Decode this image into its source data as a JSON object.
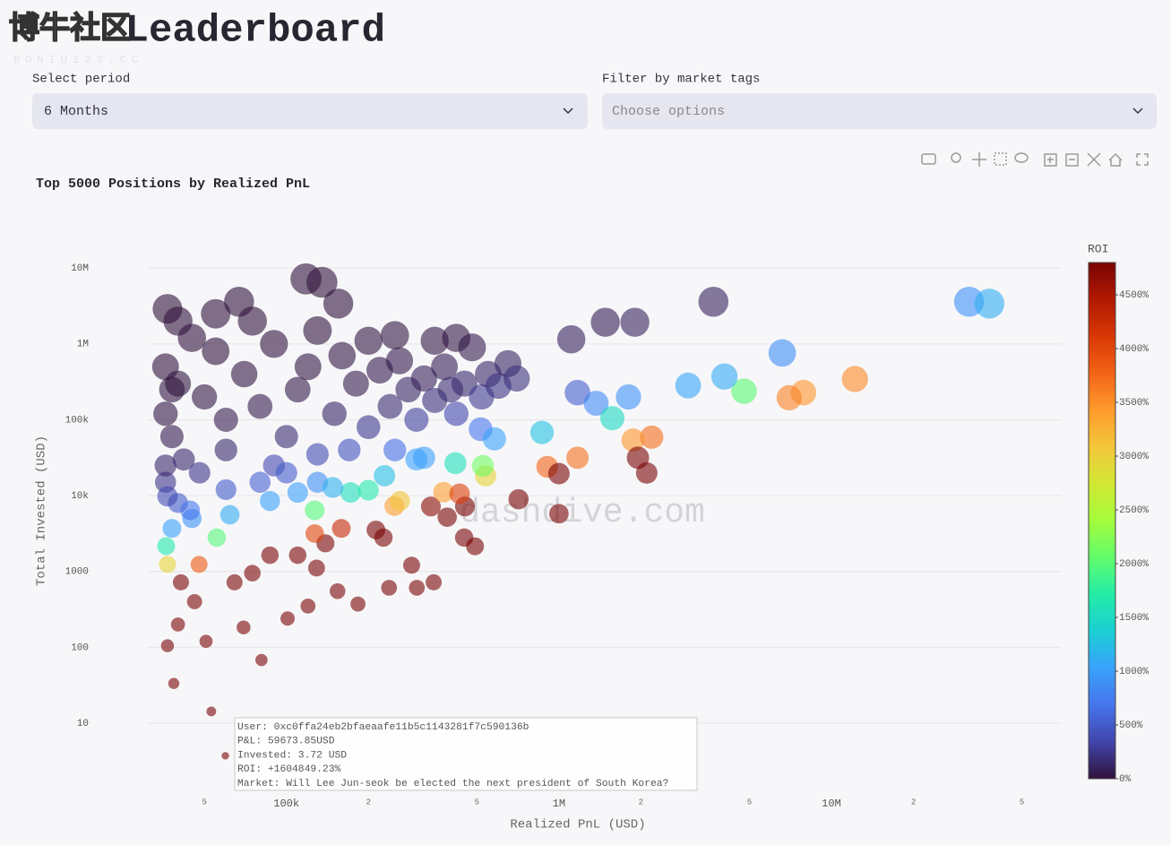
{
  "header": {
    "title": "Leaderboard",
    "watermark": "博牛社区",
    "watermark_sub": "BONIU123.CC"
  },
  "controls": [
    {
      "label": "Select period",
      "value": "6 Months"
    },
    {
      "label": "Filter by market tags",
      "placeholder": "Choose options"
    }
  ],
  "chart_data": {
    "type": "scatter",
    "title": "Top 5000 Positions by Realized PnL",
    "xlabel": "Realized PnL (USD)",
    "ylabel": "Total Invested (USD)",
    "log_x": true,
    "log_y": true,
    "grid": "y",
    "opacity": 0.6,
    "annotation": "dashdive.com",
    "xlim": [
      31000,
      70000000
    ],
    "ylim": [
      1.2,
      50000000
    ],
    "xticks": [
      {
        "value": 50000,
        "label": "5"
      },
      {
        "value": 100000,
        "label": "100k"
      },
      {
        "value": 200000,
        "label": "2"
      },
      {
        "value": 500000,
        "label": "5"
      },
      {
        "value": 1000000,
        "label": "1M"
      },
      {
        "value": 2000000,
        "label": "2"
      },
      {
        "value": 5000000,
        "label": "5"
      },
      {
        "value": 10000000,
        "label": "10M"
      },
      {
        "value": 20000000,
        "label": "2"
      },
      {
        "value": 50000000,
        "label": "5"
      }
    ],
    "yticks": [
      10,
      100,
      1000,
      {
        "value": 10000,
        "label": "10k"
      },
      {
        "value": 100000,
        "label": "100k"
      },
      {
        "value": 1000000,
        "label": "1M"
      },
      {
        "value": 10000000,
        "label": "10M"
      }
    ],
    "colorbar": {
      "title": "ROI",
      "range": [
        0,
        4800
      ],
      "ticks": [
        {
          "value": 0,
          "label": "0%"
        },
        {
          "value": 500,
          "label": "500%"
        },
        {
          "value": 1000,
          "label": "1000%"
        },
        {
          "value": 1500,
          "label": "1500%"
        },
        {
          "value": 2000,
          "label": "2000%"
        },
        {
          "value": 2500,
          "label": "2500%"
        },
        {
          "value": 3000,
          "label": "3000%"
        },
        {
          "value": 3500,
          "label": "3500%"
        },
        {
          "value": 4000,
          "label": "4000%"
        },
        {
          "value": 4500,
          "label": "4500%"
        }
      ],
      "colorscale": [
        "#30123b",
        "#4145ab",
        "#4675ed",
        "#39a2fc",
        "#1bcfd4",
        "#24eca6",
        "#61fc6c",
        "#a4fc3b",
        "#d1e834",
        "#f3c63a",
        "#fe9b2d",
        "#f36315",
        "#d93806",
        "#b11901",
        "#7a0403"
      ]
    },
    "x": [
      36000,
      40000,
      45000,
      50000,
      55000,
      60000,
      38000,
      42000,
      48000,
      36000,
      70000,
      80000,
      90000,
      100000,
      110000,
      120000,
      130000,
      150000,
      160000,
      180000,
      200000,
      220000,
      240000,
      260000,
      280000,
      300000,
      320000,
      350000,
      380000,
      400000,
      420000,
      450000,
      480000,
      520000,
      550000,
      600000,
      650000,
      700000,
      75000,
      130000,
      200000,
      250000,
      350000,
      420000,
      60000,
      90000,
      170000,
      36000,
      40000,
      45000,
      36000,
      38000,
      40000,
      55000,
      60000,
      80000,
      100000,
      130000,
      250000,
      300000,
      118000,
      135000,
      155000,
      36600,
      67000,
      3690000,
      1900000,
      1480000,
      32000000,
      38000000,
      6600000,
      12200000,
      7900000,
      7000000,
      4780000,
      4050000,
      2980000,
      1170000,
      1370000,
      1800000,
      1570000,
      1110000,
      867000,
      2190000,
      1870000,
      1950000,
      2100000,
      1170000,
      906000,
      1000000,
      711000,
      1000000,
      492000,
      449000,
      389000,
      452000,
      339000,
      377000,
      432000,
      538000,
      526000,
      417000,
      516000,
      580000,
      320000,
      288000,
      301000,
      347000,
      238000,
      213000,
      227000,
      249000,
      229000,
      183000,
      154000,
      129000,
      139000,
      127000,
      81000,
      59673.85,
      53000,
      38600,
      36600,
      50700,
      69600,
      101000,
      87000,
      64500,
      47800,
      36600,
      36200,
      38000,
      55500,
      41000,
      75000,
      110000,
      159000,
      127000,
      110000,
      87000,
      62000,
      44300,
      36600,
      172000,
      200000,
      148000,
      261000,
      46000,
      40000,
      120000
    ],
    "y": [
      500000,
      300000,
      1200000,
      200000,
      800000,
      100000,
      60000,
      30000,
      20000,
      15000,
      400000,
      150000,
      1000000,
      60000,
      250000,
      500000,
      35000,
      120000,
      700000,
      300000,
      80000,
      450000,
      150000,
      600000,
      250000,
      100000,
      350000,
      180000,
      500000,
      250000,
      120000,
      300000,
      900000,
      200000,
      400000,
      280000,
      550000,
      350000,
      2000000,
      1500000,
      1100000,
      1300000,
      1100000,
      1200000,
      40000,
      25000,
      40000,
      25000,
      8000,
      5000,
      120000,
      250000,
      2000000,
      2500000,
      12000,
      15000,
      20000,
      15000,
      40000,
      30000,
      7200000,
      6500000,
      3400000,
      2900000,
      3600000,
      3600000,
      1930000,
      1930000,
      3600000,
      3400000,
      760000,
      344000,
      228000,
      195000,
      238000,
      372000,
      283000,
      228000,
      165000,
      200000,
      105000,
      1150000,
      68000,
      59000,
      54000,
      31600,
      19900,
      31600,
      24000,
      19500,
      8950,
      5780,
      2150,
      2800,
      5200,
      7200,
      7200,
      11100,
      10600,
      18300,
      24700,
      26800,
      75000,
      56000,
      31600,
      1210,
      610,
      720,
      610,
      3530,
      2800,
      7300,
      18300,
      372,
      550,
      1110,
      2350,
      3160,
      68,
      3.72,
      14.3,
      33.4,
      105,
      120,
      183,
      240,
      1640,
      720,
      1240,
      1240,
      2160,
      3700,
      2800,
      720,
      950,
      1640,
      3700,
      6400,
      11000,
      8500,
      5600,
      6400,
      9800,
      11000,
      11800,
      12800,
      8500,
      400,
      200,
      350
    ],
    "roi": [
      7,
      13,
      4,
      25,
      7,
      60,
      63,
      140,
      240,
      240,
      18,
      53,
      9,
      167,
      44,
      24,
      371,
      125,
      23,
      60,
      250,
      49,
      160,
      43,
      112,
      300,
      91,
      194,
      76,
      160,
      350,
      150,
      53,
      260,
      138,
      214,
      118,
      200,
      4,
      9,
      18,
      19,
      32,
      35,
      150,
      360,
      425,
      144,
      500,
      900,
      30,
      15,
      2,
      2,
      500,
      533,
      500,
      867,
      625,
      1000,
      2,
      2,
      5,
      1,
      2,
      103,
      98,
      77,
      889,
      1118,
      868,
      3547,
      3465,
      3590,
      2008,
      1089,
      1053,
      513,
      830,
      900,
      1495,
      97,
      1275,
      3712,
      3463,
      6171,
      10553,
      3703,
      3775,
      5128,
      7944,
      17301,
      22884,
      16036,
      7481,
      6278,
      4708,
      3396,
      4075,
      2940,
      2130,
      1556,
      688,
      1036,
      1013,
      23802,
      49344,
      48194,
      39016,
      6034,
      8107,
      3411,
      1251,
      49194,
      28000,
      11622,
      5915,
      4019,
      119118,
      1604849.23,
      370629,
      115569,
      34857,
      42250,
      38033,
      42083,
      5305,
      8958,
      3855,
      2952,
      1676,
      1027,
      1982,
      5694,
      7895,
      6707,
      4297,
      1984,
      1000,
      1024,
      1107,
      692,
      373,
      1564,
      1695,
      1156,
      3071,
      11500,
      20000,
      34286
    ],
    "hover": [
      "User: 0xc0ffa24eb2bfaeaafe11b5c1143281f7c590136b",
      "P&L: 59673.85USD",
      "Invested: 3.72 USD",
      "ROI: +1604849.23%",
      "Market: Will Lee Jun-seok be elected the next president of South Korea?"
    ]
  }
}
